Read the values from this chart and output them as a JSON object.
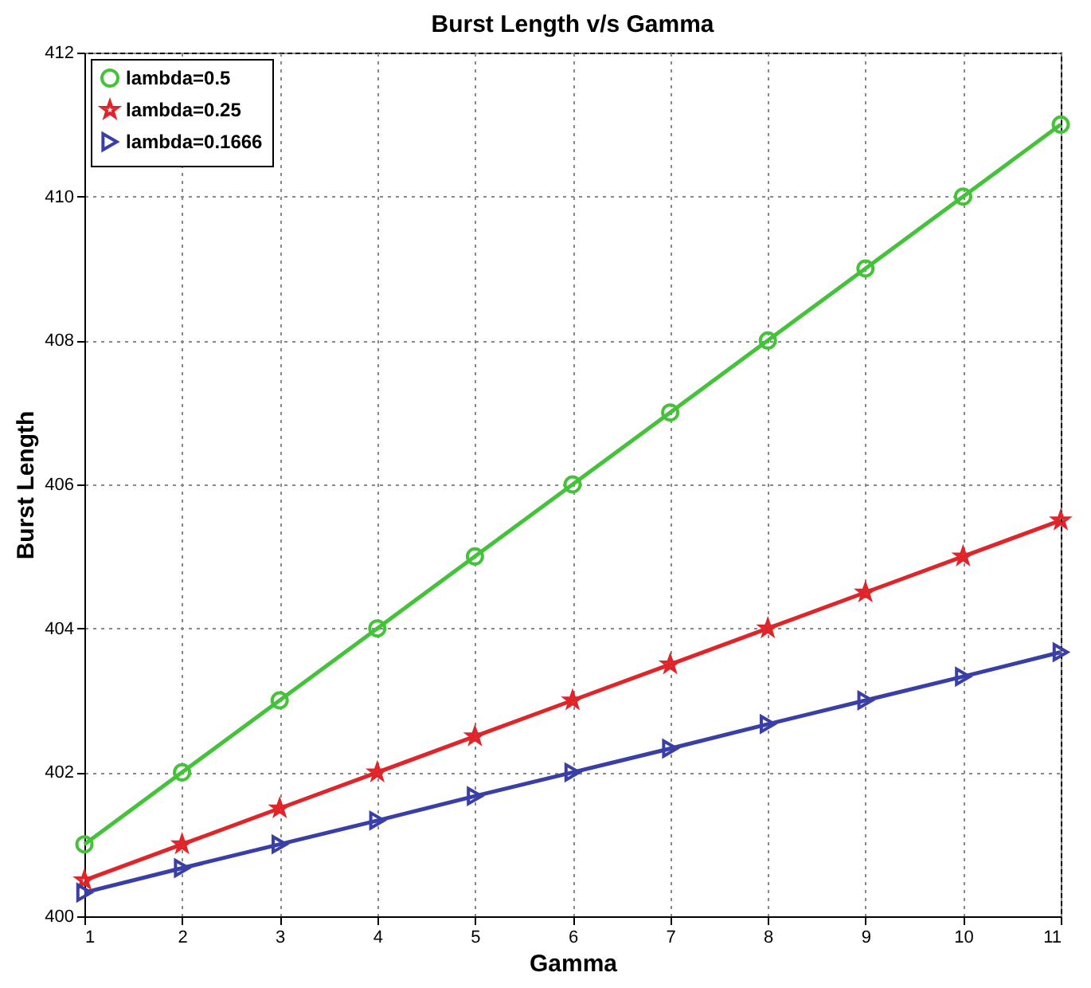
{
  "chart_data": {
    "type": "line",
    "title": "Burst Length v/s Gamma",
    "xlabel": "Gamma",
    "ylabel": "Burst Length",
    "x": [
      1,
      2,
      3,
      4,
      5,
      6,
      7,
      8,
      9,
      10,
      11
    ],
    "series": [
      {
        "name": "lambda=0.5",
        "color": "#44c23a",
        "marker": "circle",
        "values": [
          401,
          402,
          403,
          404,
          405,
          406,
          407,
          408,
          409,
          410,
          411
        ]
      },
      {
        "name": "lambda=0.25",
        "color": "#e0252a",
        "marker": "star",
        "values": [
          400.5,
          401,
          401.5,
          402,
          402.5,
          403,
          403.5,
          404,
          404.5,
          405,
          405.5
        ]
      },
      {
        "name": "lambda=0.1666",
        "color": "#3a3fa8",
        "marker": "triangle",
        "values": [
          400.33,
          400.67,
          401,
          401.33,
          401.67,
          402,
          402.33,
          402.67,
          403,
          403.33,
          403.67
        ]
      }
    ],
    "xlim": [
      1,
      11
    ],
    "xticks": [
      1,
      2,
      3,
      4,
      5,
      6,
      7,
      8,
      9,
      10,
      11
    ],
    "ylim": [
      400,
      412
    ],
    "yticks": [
      400,
      402,
      404,
      406,
      408,
      410,
      412
    ],
    "grid": true,
    "legend": "top left",
    "line_style": "solid"
  }
}
